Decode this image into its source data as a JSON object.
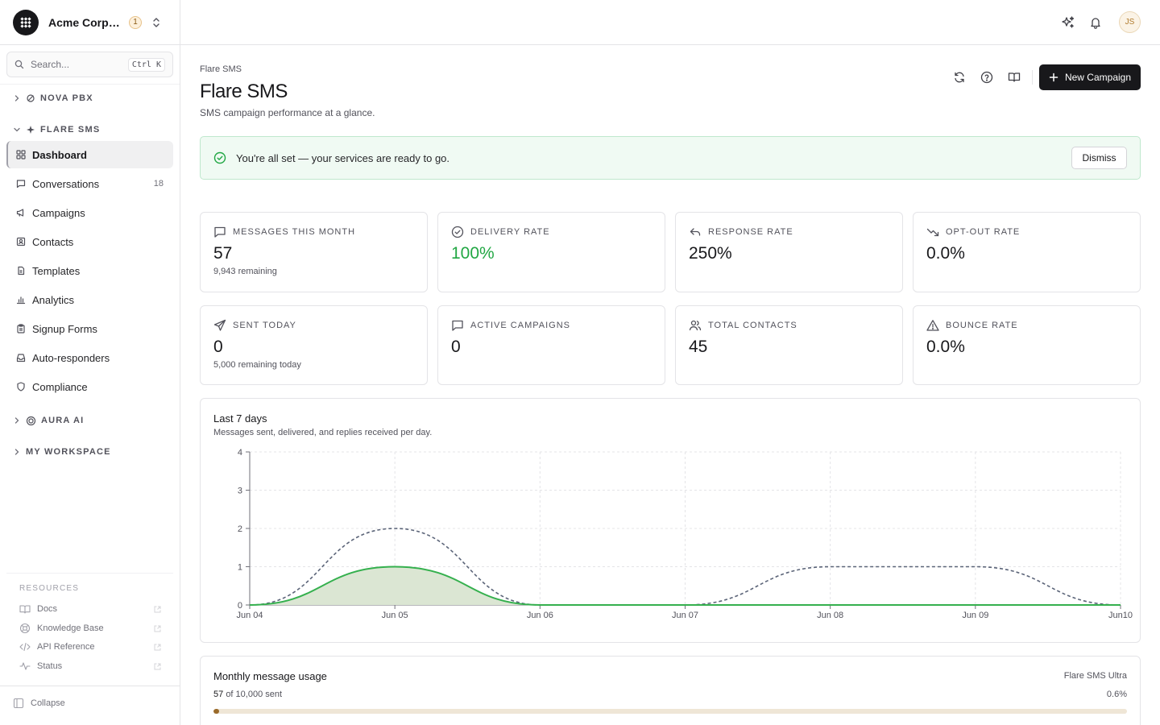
{
  "org": {
    "name": "Acme Corporation",
    "badge": "1"
  },
  "search": {
    "placeholder": "Search...",
    "shortcut": "Ctrl K"
  },
  "sidebar": {
    "groups": [
      {
        "label": "NOVA PBX",
        "expanded": false
      },
      {
        "label": "FLARE SMS",
        "expanded": true
      },
      {
        "label": "AURA AI",
        "expanded": false
      },
      {
        "label": "MY WORKSPACE",
        "expanded": false
      }
    ],
    "items": [
      {
        "label": "Dashboard",
        "icon": "dashboard-icon",
        "active": true
      },
      {
        "label": "Conversations",
        "icon": "chat-icon",
        "count": "18"
      },
      {
        "label": "Campaigns",
        "icon": "megaphone-icon"
      },
      {
        "label": "Contacts",
        "icon": "contacts-icon"
      },
      {
        "label": "Templates",
        "icon": "templates-icon"
      },
      {
        "label": "Analytics",
        "icon": "bar-chart-icon"
      },
      {
        "label": "Signup Forms",
        "icon": "clipboard-icon"
      },
      {
        "label": "Auto-responders",
        "icon": "inbox-icon"
      },
      {
        "label": "Compliance",
        "icon": "shield-icon"
      }
    ],
    "resources_title": "RESOURCES",
    "resources": [
      {
        "label": "Docs",
        "icon": "book-icon"
      },
      {
        "label": "Knowledge Base",
        "icon": "life-buoy-icon"
      },
      {
        "label": "API Reference",
        "icon": "code-icon"
      },
      {
        "label": "Status",
        "icon": "activity-icon"
      }
    ],
    "collapse_label": "Collapse"
  },
  "header": {
    "user_initials": "JS"
  },
  "page": {
    "breadcrumb": "Flare SMS",
    "title": "Flare SMS",
    "subtitle": "SMS campaign performance at a glance.",
    "new_campaign_label": "New Campaign"
  },
  "banner": {
    "text": "You're all set — your services are ready to go.",
    "dismiss_label": "Dismiss"
  },
  "stats": [
    {
      "label": "MESSAGES THIS MONTH",
      "value": "57",
      "sub": "9,943 remaining",
      "icon": "message-square-icon"
    },
    {
      "label": "DELIVERY RATE",
      "value": "100%",
      "sub": "",
      "icon": "check-circle-icon",
      "color": "#22a744"
    },
    {
      "label": "RESPONSE RATE",
      "value": "250%",
      "sub": "",
      "icon": "reply-icon"
    },
    {
      "label": "OPT-OUT RATE",
      "value": "0.0%",
      "sub": "",
      "icon": "trending-down-icon"
    },
    {
      "label": "SENT TODAY",
      "value": "0",
      "sub": "5,000 remaining today",
      "icon": "send-icon"
    },
    {
      "label": "ACTIVE CAMPAIGNS",
      "value": "0",
      "sub": "",
      "icon": "message-square-icon"
    },
    {
      "label": "TOTAL CONTACTS",
      "value": "45",
      "sub": "",
      "icon": "users-icon"
    },
    {
      "label": "BOUNCE RATE",
      "value": "0.0%",
      "sub": "",
      "icon": "alert-triangle-icon"
    }
  ],
  "chart": {
    "title": "Last 7 days",
    "subtitle": "Messages sent, delivered, and replies received per day."
  },
  "chart_data": {
    "type": "area",
    "categories": [
      "Jun 04",
      "Jun 05",
      "Jun 06",
      "Jun 07",
      "Jun 08",
      "Jun 09",
      "Jun10"
    ],
    "ylim": [
      0,
      4
    ],
    "yticks": [
      0,
      1,
      2,
      3,
      4
    ],
    "grid": true,
    "series": [
      {
        "values": [
          0,
          2,
          0,
          0,
          1,
          1,
          0
        ],
        "style": "dashed",
        "color": "#5b6478"
      },
      {
        "values": [
          0,
          1,
          0,
          0,
          0,
          0,
          0
        ],
        "style": "area",
        "color": "#35b04e",
        "fill": "#dbe6d3"
      }
    ]
  },
  "usage": {
    "title": "Monthly message usage",
    "plan": "Flare SMS Ultra",
    "used": "57",
    "total_text": "of 10,000 sent",
    "percent_text": "0.6%",
    "fraction": 0.006
  }
}
